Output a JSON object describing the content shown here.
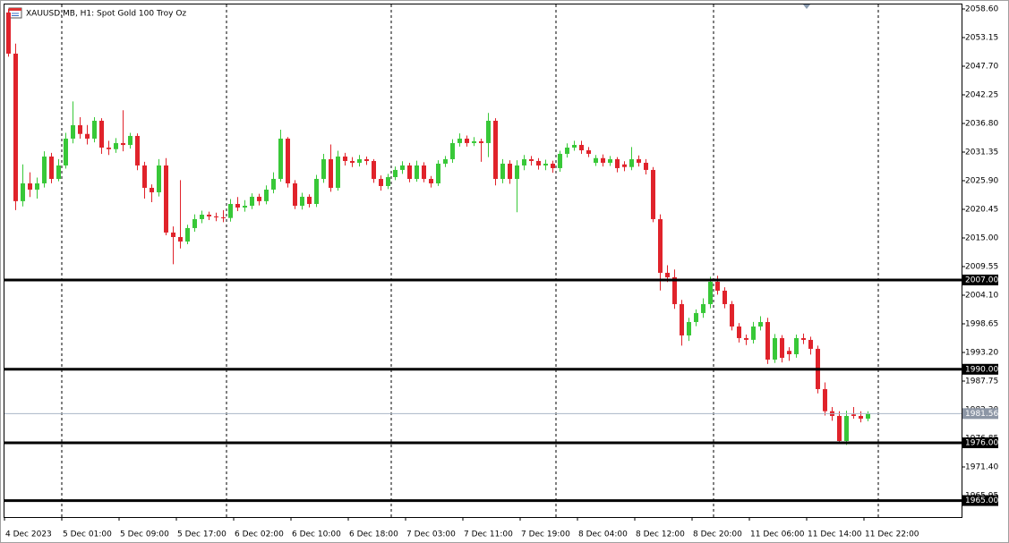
{
  "chart_data": {
    "type": "candlestick",
    "title": "XAUUSD.MB, H1:  Spot Gold 100 Troy Oz",
    "up_color": "#38c838",
    "down_color": "#e0232b",
    "ylim": [
      1961.86,
      2059.62
    ],
    "yticks": [
      {
        "value": 2058.6,
        "label": "2058.60"
      },
      {
        "value": 2053.15,
        "label": "2053.15"
      },
      {
        "value": 2047.7,
        "label": "2047.70"
      },
      {
        "value": 2042.25,
        "label": "2042.25"
      },
      {
        "value": 2036.8,
        "label": "2036.80"
      },
      {
        "value": 2031.35,
        "label": "2031.35"
      },
      {
        "value": 2025.9,
        "label": "2025.90"
      },
      {
        "value": 2020.45,
        "label": "2020.45"
      },
      {
        "value": 2015,
        "label": "2015.00"
      },
      {
        "value": 2009.55,
        "label": "2009.55"
      },
      {
        "value": 2004.1,
        "label": "2004.10"
      },
      {
        "value": 1998.65,
        "label": "1998.65"
      },
      {
        "value": 1993.2,
        "label": "1993.20"
      },
      {
        "value": 1987.75,
        "label": "1987.75"
      },
      {
        "value": 1982.3,
        "label": "1982.30"
      },
      {
        "value": 1976.85,
        "label": "1976.85"
      },
      {
        "value": 1971.4,
        "label": "1971.40"
      },
      {
        "value": 1965.95,
        "label": "1965.95"
      }
    ],
    "levels": [
      {
        "value": 2007,
        "label": "2007.00"
      },
      {
        "value": 1990,
        "label": "1990.00"
      },
      {
        "value": 1976,
        "label": "1976.00"
      },
      {
        "value": 1965,
        "label": "1965.00"
      }
    ],
    "price_line": {
      "value": 1981.56,
      "label": "1981.56"
    },
    "categories": [
      "4 Dec 2023",
      null,
      null,
      null,
      null,
      null,
      null,
      null,
      "5 Dec 01:00",
      null,
      null,
      null,
      null,
      null,
      null,
      null,
      "5 Dec 09:00",
      null,
      null,
      null,
      null,
      null,
      null,
      null,
      "5 Dec 17:00",
      null,
      null,
      null,
      null,
      null,
      null,
      null,
      "6 Dec 02:00",
      null,
      null,
      null,
      null,
      null,
      null,
      null,
      "6 Dec 10:00",
      null,
      null,
      null,
      null,
      null,
      null,
      null,
      "6 Dec 18:00",
      null,
      null,
      null,
      null,
      null,
      null,
      null,
      "7 Dec 03:00",
      null,
      null,
      null,
      null,
      null,
      null,
      null,
      "7 Dec 11:00",
      null,
      null,
      null,
      null,
      null,
      null,
      null,
      "7 Dec 19:00",
      null,
      null,
      null,
      null,
      null,
      null,
      null,
      "8 Dec 04:00",
      null,
      null,
      null,
      null,
      null,
      null,
      null,
      "8 Dec 12:00",
      null,
      null,
      null,
      null,
      null,
      null,
      null,
      "8 Dec 20:00",
      null,
      null,
      null,
      null,
      null,
      null,
      null,
      "11 Dec 06:00",
      null,
      null,
      null,
      null,
      null,
      null,
      null,
      "11 Dec 14:00",
      null,
      null,
      null,
      null,
      null,
      null,
      null,
      "11 Dec 22:00"
    ],
    "candles": [
      [
        2057.92,
        2058.6,
        2049.5,
        2050.09
      ],
      [
        2050.09,
        2052.0,
        2020.3,
        2022.0
      ],
      [
        2022.0,
        2029.0,
        2021.0,
        2025.39
      ],
      [
        2025.39,
        2027.5,
        2022.8,
        2024.2
      ],
      [
        2024.2,
        2026.5,
        2022.5,
        2025.39
      ],
      [
        2025.39,
        2031.5,
        2024.6,
        2030.5
      ],
      [
        2030.5,
        2031.2,
        2025.4,
        2026.24
      ],
      [
        2026.24,
        2030.0,
        2025.8,
        2028.8
      ],
      [
        2028.8,
        2035.0,
        2028.2,
        2033.91
      ],
      [
        2033.91,
        2041.0,
        2033.0,
        2036.46
      ],
      [
        2036.46,
        2038.0,
        2033.9,
        2034.8
      ],
      [
        2034.8,
        2036.5,
        2032.8,
        2033.91
      ],
      [
        2033.91,
        2038.0,
        2033.2,
        2037.31
      ],
      [
        2037.31,
        2037.8,
        2031.0,
        2032.2
      ],
      [
        2032.2,
        2033.5,
        2030.8,
        2031.9
      ],
      [
        2031.9,
        2034.0,
        2031.2,
        2033.06
      ],
      [
        2033.06,
        2039.3,
        2031.5,
        2032.7
      ],
      [
        2032.7,
        2035.0,
        2032.0,
        2034.42
      ],
      [
        2034.42,
        2034.9,
        2027.9,
        2028.8
      ],
      [
        2028.8,
        2029.5,
        2022.5,
        2024.54
      ],
      [
        2024.54,
        2025.2,
        2021.8,
        2023.69
      ],
      [
        2023.69,
        2030.0,
        2022.9,
        2028.8
      ],
      [
        2028.8,
        2030.2,
        2015.5,
        2016.03
      ],
      [
        2016.03,
        2017.2,
        2010.0,
        2015.17
      ],
      [
        2015.17,
        2026.0,
        2013.0,
        2014.32
      ],
      [
        2014.32,
        2017.5,
        2013.8,
        2016.88
      ],
      [
        2016.88,
        2019.5,
        2016.2,
        2018.58
      ],
      [
        2018.58,
        2020.2,
        2017.8,
        2019.43
      ],
      [
        2019.43,
        2020.0,
        2018.4,
        2019.1
      ],
      [
        2019.1,
        2019.8,
        2018.2,
        2018.92
      ],
      [
        2018.92,
        2020.3,
        2018.0,
        2018.8
      ],
      [
        2018.8,
        2022.4,
        2018.1,
        2021.47
      ],
      [
        2021.47,
        2022.8,
        2020.1,
        2020.79
      ],
      [
        2020.79,
        2022.2,
        2020.0,
        2021.13
      ],
      [
        2021.13,
        2023.5,
        2020.5,
        2022.84
      ],
      [
        2022.84,
        2023.4,
        2021.2,
        2022.0
      ],
      [
        2022.0,
        2025.0,
        2021.4,
        2024.2
      ],
      [
        2024.2,
        2027.5,
        2023.5,
        2026.24
      ],
      [
        2026.24,
        2035.6,
        2025.7,
        2033.91
      ],
      [
        2033.91,
        2034.2,
        2024.6,
        2025.39
      ],
      [
        2025.39,
        2026.0,
        2020.5,
        2021.13
      ],
      [
        2021.13,
        2023.6,
        2020.4,
        2022.84
      ],
      [
        2022.84,
        2023.3,
        2020.8,
        2021.47
      ],
      [
        2021.47,
        2027.0,
        2020.9,
        2026.24
      ],
      [
        2026.24,
        2031.0,
        2025.5,
        2029.99
      ],
      [
        2029.99,
        2032.8,
        2023.8,
        2024.54
      ],
      [
        2024.54,
        2031.6,
        2024.0,
        2030.5
      ],
      [
        2030.5,
        2031.2,
        2028.8,
        2029.65
      ],
      [
        2029.65,
        2030.4,
        2028.5,
        2029.31
      ],
      [
        2029.31,
        2030.8,
        2028.6,
        2029.99
      ],
      [
        2029.99,
        2030.5,
        2028.9,
        2029.65
      ],
      [
        2029.65,
        2030.0,
        2025.5,
        2026.24
      ],
      [
        2026.24,
        2026.9,
        2024.0,
        2024.88
      ],
      [
        2024.88,
        2027.2,
        2024.3,
        2026.58
      ],
      [
        2026.58,
        2028.6,
        2026.0,
        2027.95
      ],
      [
        2027.95,
        2029.6,
        2027.2,
        2028.8
      ],
      [
        2028.8,
        2029.3,
        2025.6,
        2026.24
      ],
      [
        2026.24,
        2029.7,
        2025.7,
        2028.8
      ],
      [
        2028.8,
        2029.4,
        2025.6,
        2026.24
      ],
      [
        2026.24,
        2026.8,
        2024.6,
        2025.39
      ],
      [
        2025.39,
        2029.8,
        2024.9,
        2029.14
      ],
      [
        2029.14,
        2030.6,
        2028.5,
        2029.99
      ],
      [
        2029.99,
        2033.8,
        2029.3,
        2033.06
      ],
      [
        2033.06,
        2034.9,
        2032.4,
        2033.91
      ],
      [
        2033.91,
        2034.5,
        2032.4,
        2033.06
      ],
      [
        2033.06,
        2034.2,
        2032.5,
        2033.4
      ],
      [
        2033.4,
        2033.9,
        2029.5,
        2033.06
      ],
      [
        2033.06,
        2038.8,
        2030.4,
        2037.31
      ],
      [
        2037.31,
        2037.8,
        2025.0,
        2026.24
      ],
      [
        2026.24,
        2030.0,
        2025.4,
        2029.14
      ],
      [
        2029.14,
        2029.8,
        2025.3,
        2026.24
      ],
      [
        2026.24,
        2029.8,
        2019.9,
        2028.8
      ],
      [
        2028.8,
        2030.8,
        2027.9,
        2029.99
      ],
      [
        2029.99,
        2030.6,
        2028.8,
        2029.65
      ],
      [
        2029.65,
        2030.2,
        2028.0,
        2028.8
      ],
      [
        2028.8,
        2029.9,
        2027.9,
        2029.14
      ],
      [
        2029.14,
        2029.7,
        2027.4,
        2028.29
      ],
      [
        2028.29,
        2031.6,
        2027.6,
        2031.01
      ],
      [
        2031.01,
        2033.0,
        2030.3,
        2032.2
      ],
      [
        2032.2,
        2033.5,
        2031.6,
        2032.71
      ],
      [
        2032.71,
        2033.5,
        2031.0,
        2031.69
      ],
      [
        2031.69,
        2032.3,
        2030.4,
        2031.01
      ],
      [
        2029.3,
        2030.8,
        2028.7,
        2030.2
      ],
      [
        2030.2,
        2030.9,
        2028.6,
        2029.31
      ],
      [
        2029.31,
        2030.6,
        2028.7,
        2029.99
      ],
      [
        2029.99,
        2030.4,
        2027.5,
        2028.29
      ],
      [
        2029.0,
        2029.6,
        2027.7,
        2028.5
      ],
      [
        2028.5,
        2032.3,
        2027.9,
        2029.99
      ],
      [
        2029.99,
        2030.7,
        2028.6,
        2029.31
      ],
      [
        2029.31,
        2030.0,
        2027.1,
        2027.95
      ],
      [
        2027.95,
        2028.5,
        2018.0,
        2018.58
      ],
      [
        2018.58,
        2019.5,
        2005.0,
        2008.36
      ],
      [
        2008.36,
        2009.8,
        2006.6,
        2007.51
      ],
      [
        2007.51,
        2009.0,
        2001.5,
        2002.4
      ],
      [
        2002.4,
        2003.2,
        1994.5,
        1996.44
      ],
      [
        1996.44,
        1999.8,
        1995.4,
        1998.99
      ],
      [
        1998.99,
        2001.4,
        1998.2,
        2000.7
      ],
      [
        2000.7,
        2003.5,
        1999.8,
        2002.4
      ],
      [
        2002.4,
        2007.6,
        2001.6,
        2006.66
      ],
      [
        2006.66,
        2007.8,
        2004.2,
        2004.96
      ],
      [
        2004.96,
        2005.6,
        2001.6,
        2002.4
      ],
      [
        2002.4,
        2003.0,
        1997.4,
        1998.14
      ],
      [
        1998.14,
        1998.8,
        1995.1,
        1995.93
      ],
      [
        1995.93,
        1996.6,
        1994.6,
        1995.6
      ],
      [
        1995.6,
        1999.0,
        1994.9,
        1998.14
      ],
      [
        1998.14,
        2000.1,
        1997.4,
        1998.99
      ],
      [
        1998.99,
        1999.8,
        1991.0,
        1991.84
      ],
      [
        1991.84,
        1996.7,
        1991.2,
        1995.93
      ],
      [
        1995.93,
        1996.5,
        1991.3,
        1992.18
      ],
      [
        1993.5,
        1994.2,
        1991.6,
        1992.86
      ],
      [
        1992.86,
        1996.6,
        1992.2,
        1995.93
      ],
      [
        1995.93,
        1996.8,
        1994.8,
        1995.59
      ],
      [
        1995.59,
        1996.2,
        1992.8,
        1993.89
      ],
      [
        1993.89,
        1994.5,
        1985.4,
        1986.22
      ],
      [
        1986.22,
        1987.5,
        1981.2,
        1982.01
      ],
      [
        1982.01,
        1982.8,
        1980.2,
        1981.11
      ],
      [
        1981.11,
        1982.0,
        1975.8,
        1976.34
      ],
      [
        1976.34,
        1982.1,
        1975.6,
        1981.11
      ],
      [
        1981.4,
        1982.8,
        1980.6,
        1981.11
      ],
      [
        1981.11,
        1982.0,
        1979.9,
        1980.6
      ],
      [
        1980.6,
        1982.0,
        1980.1,
        1981.56
      ]
    ]
  }
}
